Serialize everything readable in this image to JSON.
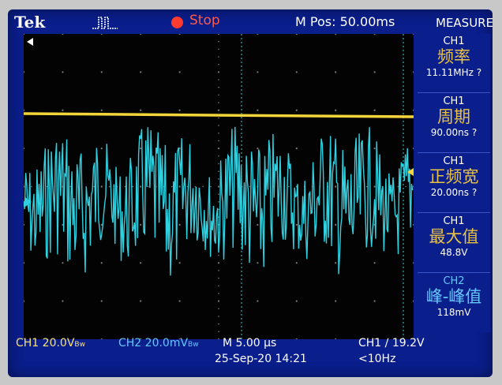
{
  "header": {
    "brand": "Tek",
    "trigger_icon": "trigger-pulse-icon",
    "run_indicator_icon": "stop-indicator-icon",
    "run_state": "Stop",
    "horizontal_position": "M Pos: 50.00ms",
    "menu_title": "MEASURE"
  },
  "measurements": [
    {
      "channel": "CH1",
      "label": "频率",
      "value": "11.11MHz ?"
    },
    {
      "channel": "CH1",
      "label": "周期",
      "value": "90.00ns ?"
    },
    {
      "channel": "CH1",
      "label": "正频宽",
      "value": "20.00ns ?"
    },
    {
      "channel": "CH1",
      "label": "最大值",
      "value": "48.8V"
    },
    {
      "channel": "CH2",
      "label": "峰-峰值",
      "value": "118mV"
    }
  ],
  "footer": {
    "ch1_scale": "CH1  20.0V",
    "ch1_bw": "Bw",
    "ch2_scale": "CH2  20.0mV",
    "ch2_bw": "Bw",
    "timebase": "M 5.00 µs",
    "trigger": "CH1 ∕ 19.2V",
    "date": "25-Sep-20 14:21",
    "trigger_freq": "<10Hz"
  },
  "colors": {
    "screen_bg": "#0a1e8c",
    "ch1": "#f2d53b",
    "ch2": "#2fd0e0",
    "stop": "#ff3b2f",
    "grid": "#7a7a7a"
  }
}
